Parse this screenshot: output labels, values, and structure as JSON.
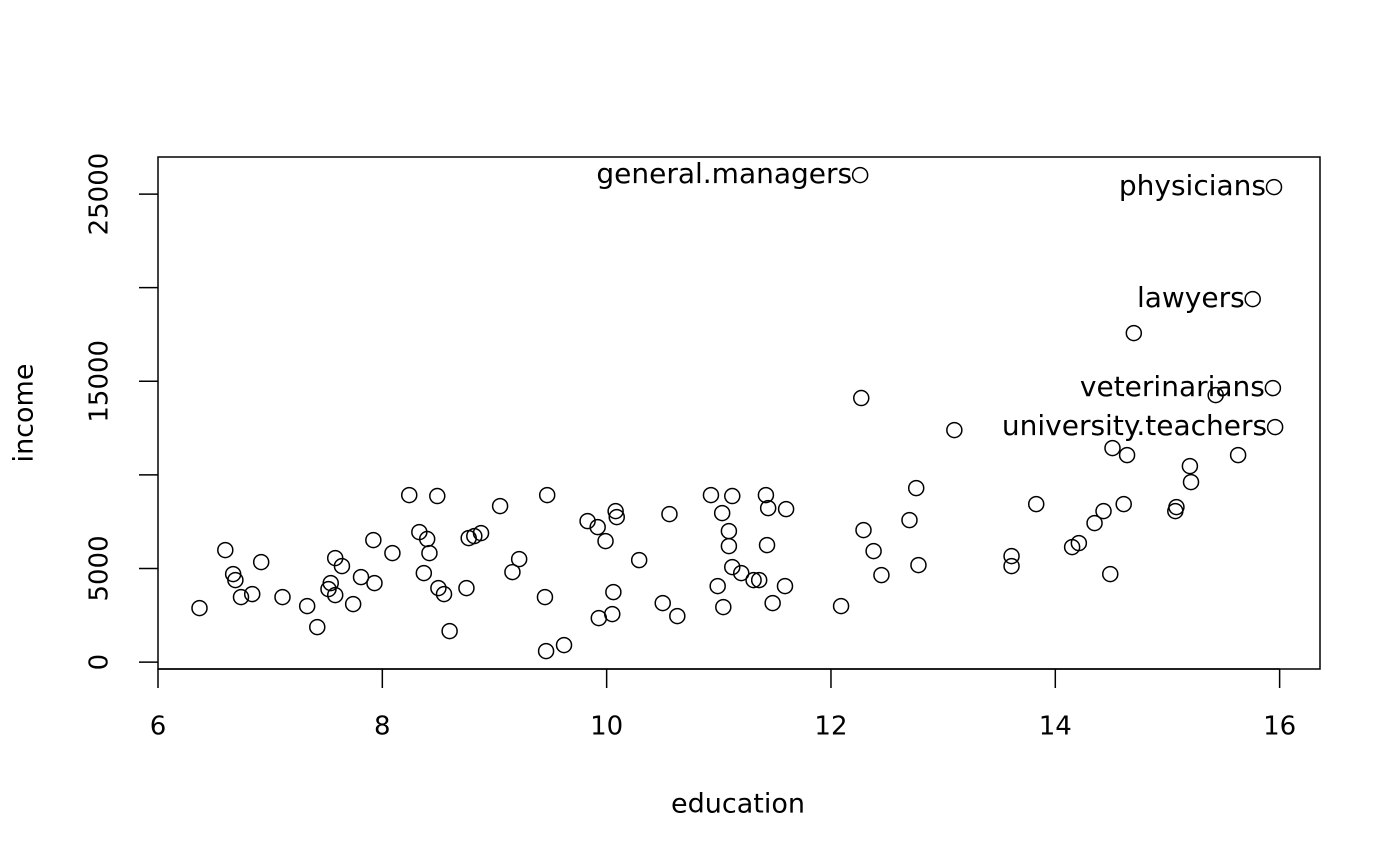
{
  "chart_data": {
    "type": "scatter",
    "x_label": "education",
    "y_label": "income",
    "xlim": [
      6,
      16.36
    ],
    "ylim": [
      -370,
      26980
    ],
    "xticks": [
      6,
      8,
      10,
      12,
      14,
      16
    ],
    "yticks": [
      0,
      5000,
      {
        "value": 10000,
        "label": null
      },
      15000,
      {
        "value": 20000,
        "label": null
      },
      25000
    ],
    "color": "#000000",
    "x": [
      6.37,
      6.6,
      6.67,
      6.69,
      6.74,
      6.84,
      6.92,
      7.11,
      7.33,
      7.42,
      7.52,
      7.54,
      7.58,
      7.58,
      7.64,
      7.74,
      7.81,
      7.92,
      7.93,
      8.09,
      8.24,
      8.33,
      8.37,
      8.4,
      8.42,
      8.49,
      8.5,
      8.55,
      8.6,
      8.75,
      8.77,
      8.82,
      8.88,
      9.05,
      9.16,
      9.22,
      9.45,
      9.46,
      9.47,
      9.62,
      9.83,
      9.92,
      9.93,
      9.99,
      10.05,
      10.06,
      10.08,
      10.09,
      10.29,
      10.5,
      10.56,
      10.63,
      10.93,
      10.99,
      11.03,
      11.04,
      11.09,
      11.09,
      11.12,
      11.12,
      11.2,
      11.31,
      11.36,
      11.42,
      11.43,
      11.44,
      11.48,
      11.59,
      11.6,
      12.09,
      12.26,
      12.27,
      12.29,
      12.38,
      12.45,
      12.7,
      12.76,
      12.78,
      13.1,
      13.61,
      13.61,
      13.83,
      14.15,
      14.21,
      14.35,
      14.43,
      14.49,
      14.51,
      14.61,
      14.64,
      14.7,
      15.07,
      15.08,
      15.2,
      15.21,
      15.43,
      15.63,
      15.76,
      15.94,
      15.95,
      15.96
    ],
    "y": [
      2885,
      5983,
      4701,
      4380,
      3472,
      3632,
      5342,
      3472,
      2991,
      1870,
      3900,
      4220,
      5556,
      3579,
      5128,
      3098,
      4541,
      6517,
      4220,
      5823,
      8921,
      6944,
      4754,
      6571,
      5823,
      8868,
      3953,
      3632,
      1656,
      3953,
      6624,
      6731,
      6891,
      8333,
      4808,
      5502,
      3472,
      588,
      8921,
      908,
      7532,
      7212,
      2350,
      6464,
      2564,
      3739,
      8066,
      7746,
      5449,
      3152,
      7906,
      2457,
      8921,
      4060,
      7959,
      2938,
      6998,
      6197,
      8868,
      5075,
      4754,
      4380,
      4380,
      8921,
      6250,
      8226,
      3152,
      4060,
      8173,
      2991,
      26015,
      14103,
      7051,
      5929,
      4647,
      7585,
      9295,
      5182,
      12393,
      5662,
      5128,
      8440,
      6143,
      6357,
      7425,
      8066,
      4701,
      11432,
      8440,
      11058,
      17575,
      8066,
      8280,
      10470,
      9615,
      14263,
      11058,
      19391,
      14637,
      25374,
      12553
    ],
    "labels": [
      null,
      null,
      null,
      null,
      null,
      null,
      null,
      null,
      null,
      null,
      null,
      null,
      null,
      null,
      null,
      null,
      null,
      null,
      null,
      null,
      null,
      null,
      null,
      null,
      null,
      null,
      null,
      null,
      null,
      null,
      null,
      null,
      null,
      null,
      null,
      null,
      null,
      null,
      null,
      null,
      null,
      null,
      null,
      null,
      null,
      null,
      null,
      null,
      null,
      null,
      null,
      null,
      null,
      null,
      null,
      null,
      null,
      null,
      null,
      null,
      null,
      null,
      null,
      null,
      null,
      null,
      null,
      null,
      null,
      null,
      "general.managers",
      null,
      null,
      null,
      null,
      null,
      null,
      null,
      null,
      null,
      null,
      null,
      null,
      null,
      null,
      null,
      null,
      null,
      null,
      null,
      null,
      null,
      null,
      null,
      null,
      null,
      null,
      "lawyers",
      "veterinarians",
      "physicians",
      "university.teachers"
    ]
  }
}
